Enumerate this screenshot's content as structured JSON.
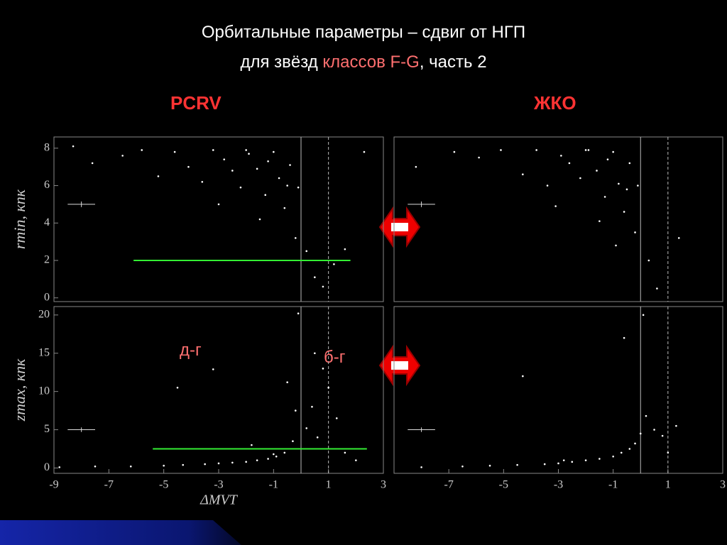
{
  "title_line1": "Орбитальные параметры – сдвиг от НГП",
  "title_line2": [
    "для звёзд ",
    "классов F-G",
    ", часть 2"
  ],
  "left_label": "PCRV",
  "right_label": "ЖКО",
  "annotations": [
    "д-г",
    "б-г"
  ],
  "chart_data": [
    {
      "type": "scatter",
      "ylabel": "rmin, кпк",
      "xlim": [
        -9,
        3
      ],
      "ylim": [
        -0.2,
        8.6
      ],
      "yticks": [
        0,
        2,
        4,
        6,
        8
      ],
      "series": [
        {
          "color": "#ffffff",
          "x": [
            -8.3,
            -7.6,
            -6.5,
            -5.8,
            -5.2,
            -4.6,
            -4.1,
            -3.6,
            -3.2,
            -2.8,
            -2.5,
            -2.2,
            -1.9,
            -1.6,
            -1.3,
            -1.0,
            -0.8,
            -0.6,
            -0.4,
            -0.2,
            -0.1,
            0.2,
            0.5,
            0.8,
            1.2,
            1.6,
            2.3,
            -2.0,
            -1.2,
            -0.5,
            -3.0,
            -1.5
          ],
          "y": [
            8.1,
            7.2,
            7.6,
            7.9,
            6.5,
            7.8,
            7.0,
            6.2,
            7.9,
            7.4,
            6.8,
            5.9,
            7.7,
            6.9,
            5.5,
            7.8,
            6.4,
            4.8,
            7.1,
            3.2,
            5.9,
            2.5,
            1.1,
            0.6,
            1.8,
            2.6,
            7.8,
            7.9,
            7.3,
            6.0,
            5.0,
            4.2
          ]
        }
      ],
      "hlines": [
        {
          "x": [
            -6.1,
            1.8
          ],
          "y": 2,
          "color": "#33ee33"
        }
      ],
      "vlines": [
        {
          "x": 0,
          "style": "solid"
        },
        {
          "x": 1,
          "style": "dashed"
        }
      ],
      "error_bar": {
        "x": -8,
        "y": 5,
        "xerr": 0.5,
        "yerr": 0.15
      }
    },
    {
      "type": "scatter",
      "xlim": [
        -9,
        3
      ],
      "ylim": [
        -0.2,
        8.6
      ],
      "series": [
        {
          "color": "#ffffff",
          "x": [
            -8.2,
            -6.8,
            -5.9,
            -5.1,
            -4.3,
            -3.8,
            -3.4,
            -2.9,
            -2.6,
            -2.2,
            -1.9,
            -1.6,
            -1.3,
            -1.0,
            -0.8,
            -0.6,
            -0.4,
            -0.2,
            -0.1,
            0.3,
            0.6,
            1.4,
            -2.0,
            -1.2,
            -0.5,
            -3.1,
            -1.5,
            -0.9
          ],
          "y": [
            7.0,
            7.8,
            7.5,
            7.9,
            6.6,
            7.9,
            6.0,
            7.6,
            7.2,
            6.4,
            7.9,
            6.8,
            5.4,
            7.8,
            6.1,
            4.6,
            7.2,
            3.5,
            6.0,
            2.0,
            0.5,
            3.2,
            7.9,
            7.4,
            5.8,
            4.9,
            4.1,
            2.8
          ]
        }
      ],
      "vlines": [
        {
          "x": 0,
          "style": "solid"
        },
        {
          "x": 1,
          "style": "dashed"
        }
      ],
      "error_bar": {
        "x": -8,
        "y": 5,
        "xerr": 0.5,
        "yerr": 0.15
      }
    },
    {
      "type": "scatter",
      "ylabel": "zmax, кпк",
      "xlabel": "ΔMVT",
      "xlim": [
        -9,
        3
      ],
      "ylim": [
        -0.7,
        21.1
      ],
      "yticks": [
        0,
        5,
        10,
        15,
        20
      ],
      "xticks": [
        -9,
        -7,
        -5,
        -3,
        -1,
        1,
        3
      ],
      "series": [
        {
          "color": "#ffffff",
          "x": [
            -8.8,
            -7.5,
            -6.2,
            -5.0,
            -4.3,
            -3.5,
            -3.0,
            -2.5,
            -2.0,
            -1.6,
            -1.2,
            -0.9,
            -0.6,
            -0.3,
            -0.1,
            0.2,
            0.4,
            0.6,
            0.8,
            1.0,
            1.3,
            1.6,
            2.0,
            -4.5,
            -3.2,
            -0.5,
            0.5,
            -0.2,
            -1.8,
            -1.0
          ],
          "y": [
            0.1,
            0.2,
            0.2,
            0.3,
            0.4,
            0.5,
            0.6,
            0.7,
            0.8,
            1.0,
            1.2,
            1.5,
            2.0,
            3.5,
            20.2,
            5.2,
            8.0,
            4.0,
            13.0,
            10.5,
            6.5,
            2.0,
            1.0,
            10.5,
            12.9,
            11.2,
            15.0,
            7.5,
            3.0,
            1.8
          ]
        }
      ],
      "hlines": [
        {
          "x": [
            -5.4,
            2.4
          ],
          "y": 2.5,
          "color": "#33ee33"
        }
      ],
      "vlines": [
        {
          "x": 0,
          "style": "solid"
        },
        {
          "x": 1,
          "style": "dashed"
        }
      ],
      "error_bar": {
        "x": -8,
        "y": 5,
        "xerr": 0.5,
        "yerr": 0.3
      }
    },
    {
      "type": "scatter",
      "xlim": [
        -9,
        3
      ],
      "ylim": [
        -0.7,
        21.1
      ],
      "xticks": [
        -7,
        -5,
        -3,
        -1,
        1,
        3
      ],
      "series": [
        {
          "color": "#ffffff",
          "x": [
            -8.0,
            -6.5,
            -5.5,
            -4.5,
            -3.5,
            -3.0,
            -2.5,
            -2.0,
            -1.5,
            -1.0,
            -0.7,
            -0.4,
            -0.2,
            0.0,
            0.2,
            0.5,
            0.8,
            1.3,
            -4.3,
            -0.6,
            -2.8,
            1.0,
            0.1
          ],
          "y": [
            0.1,
            0.2,
            0.3,
            0.4,
            0.5,
            0.6,
            0.8,
            1.0,
            1.2,
            1.5,
            2.0,
            2.5,
            3.2,
            4.5,
            6.8,
            5.0,
            4.2,
            5.5,
            12.0,
            17.0,
            1.0,
            2.0,
            20.0
          ]
        }
      ],
      "vlines": [
        {
          "x": 0,
          "style": "solid"
        },
        {
          "x": 1,
          "style": "dashed"
        }
      ],
      "error_bar": {
        "x": -8,
        "y": 5,
        "xerr": 0.5,
        "yerr": 0.3
      }
    }
  ]
}
